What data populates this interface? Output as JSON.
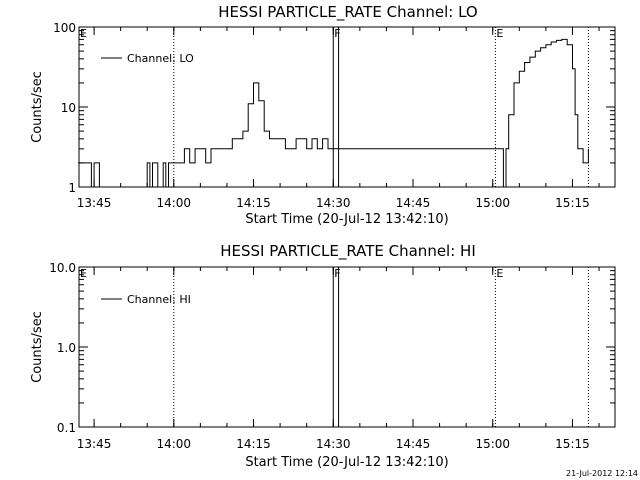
{
  "chart_data": [
    {
      "type": "line",
      "title": "HESSI PARTICLE_RATE Channel: LO",
      "xlabel": "Start Time (20-Jul-12 13:42:10)",
      "ylabel": "Counts/sec",
      "yscale": "log",
      "ylim": [
        1,
        100
      ],
      "xlim": [
        "13:42:10",
        "15:23:00"
      ],
      "x_ticks": [
        "13:45",
        "14:00",
        "14:15",
        "14:30",
        "14:45",
        "15:00",
        "15:15"
      ],
      "y_ticks": [
        "1",
        "10",
        "100"
      ],
      "legend": "top-left",
      "grid": false,
      "series": [
        {
          "name": "Channel: LO",
          "color": "#000000",
          "x": [
            "13:42",
            "13:43",
            "13:44",
            "13:44:30",
            "13:45",
            "13:46",
            "13:48",
            "13:52",
            "13:55",
            "13:55:30",
            "13:56",
            "13:57",
            "13:58",
            "13:58:30",
            "13:59",
            "14:00",
            "14:01",
            "14:02",
            "14:03",
            "14:04",
            "14:05",
            "14:06",
            "14:07",
            "14:08",
            "14:09",
            "14:10",
            "14:11",
            "14:12",
            "14:13",
            "14:14",
            "14:15",
            "14:16",
            "14:17",
            "14:18",
            "14:19",
            "14:20",
            "14:21",
            "14:22",
            "14:23",
            "14:24",
            "14:25",
            "14:26",
            "14:27",
            "14:28",
            "14:29",
            "14:30",
            "14:31",
            "14:33",
            "14:35",
            "14:37",
            "14:39",
            "14:41",
            "14:43",
            "14:45",
            "14:47",
            "14:49",
            "14:51",
            "14:53",
            "14:55",
            "14:57",
            "14:59",
            "15:01",
            "15:02",
            "15:02:30",
            "15:03",
            "15:04",
            "15:05",
            "15:06",
            "15:07",
            "15:08",
            "15:09",
            "15:10",
            "15:11",
            "15:12",
            "15:13",
            "15:14",
            "15:15",
            "15:15:30",
            "15:16",
            "15:17",
            "15:18"
          ],
          "values": [
            2,
            2,
            2,
            1,
            2,
            1,
            1,
            1,
            2,
            1,
            2,
            1,
            2,
            1,
            2,
            2,
            2,
            3,
            2,
            3,
            3,
            2,
            3,
            3,
            3,
            3,
            4,
            4,
            5,
            11,
            20,
            12,
            5,
            4,
            4,
            4,
            3,
            3,
            4,
            4,
            3,
            4,
            3,
            4,
            3,
            3,
            3,
            3,
            3,
            3,
            3,
            3,
            3,
            3,
            3,
            3,
            3,
            3,
            3,
            3,
            3,
            3,
            1,
            3,
            8,
            20,
            28,
            36,
            42,
            50,
            55,
            60,
            65,
            68,
            70,
            60,
            30,
            8,
            3,
            2,
            3
          ]
        }
      ],
      "markers": [
        {
          "label": "E",
          "at": "13:42:10",
          "style": "dotted"
        },
        {
          "label": "",
          "at": "14:00",
          "style": "dotted"
        },
        {
          "label": "F",
          "at": "14:30",
          "style": "solid"
        },
        {
          "label": "",
          "at": "14:31",
          "style": "solid"
        },
        {
          "label": "E",
          "at": "15:00:30",
          "style": "dotted"
        },
        {
          "label": "",
          "at": "15:18",
          "style": "dotted"
        }
      ]
    },
    {
      "type": "line",
      "title": "HESSI PARTICLE_RATE Channel: HI",
      "xlabel": "Start Time (20-Jul-12 13:42:10)",
      "ylabel": "Counts/sec",
      "yscale": "log",
      "ylim": [
        0.1,
        10.0
      ],
      "xlim": [
        "13:42:10",
        "15:23:00"
      ],
      "x_ticks": [
        "13:45",
        "14:00",
        "14:15",
        "14:30",
        "14:45",
        "15:00",
        "15:15"
      ],
      "y_ticks": [
        "0.1",
        "1.0",
        "10.0"
      ],
      "legend": "top-left",
      "grid": false,
      "series": [
        {
          "name": "Channel: HI",
          "color": "#000000",
          "x": [],
          "values": []
        }
      ],
      "markers": [
        {
          "label": "E",
          "at": "13:42:10",
          "style": "dotted"
        },
        {
          "label": "",
          "at": "14:00",
          "style": "dotted"
        },
        {
          "label": "F",
          "at": "14:30",
          "style": "solid"
        },
        {
          "label": "",
          "at": "14:31",
          "style": "solid"
        },
        {
          "label": "E",
          "at": "15:00:30",
          "style": "dotted"
        },
        {
          "label": "",
          "at": "15:18",
          "style": "dotted"
        }
      ]
    }
  ],
  "footer": {
    "timestamp": "21-Jul-2012 12:14"
  }
}
